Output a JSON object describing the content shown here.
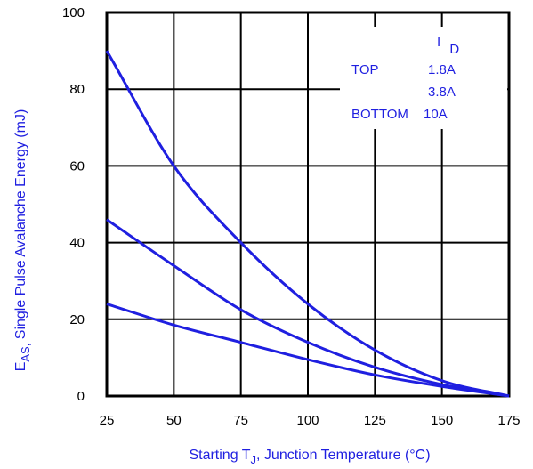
{
  "chart_data": {
    "type": "line",
    "x": [
      25,
      50,
      75,
      100,
      125,
      150,
      175
    ],
    "xlim": [
      25,
      175
    ],
    "ylim": [
      0,
      100
    ],
    "xticks": [
      "25",
      "50",
      "75",
      "100",
      "125",
      "150",
      "175"
    ],
    "yticks": [
      "0",
      "20",
      "40",
      "60",
      "80",
      "100"
    ],
    "grid": true,
    "ylabel": {
      "main": "E",
      "sub": "AS,",
      "rest": " Single Pulse Avalanche Energy (mJ)"
    },
    "xlabel": {
      "pre": "Starting T",
      "sub": "J",
      "post": ", Junction Temperature (°C)"
    },
    "legend": {
      "header_main": "I",
      "header_sub": "D",
      "position": "top-right",
      "rows": [
        {
          "tag": "TOP",
          "value": "1.8A"
        },
        {
          "tag": "",
          "value": "3.8A"
        },
        {
          "tag": "BOTTOM",
          "value": "10A"
        }
      ]
    },
    "series": [
      {
        "values": [
          90,
          60,
          40,
          24,
          12,
          4,
          0
        ]
      },
      {
        "values": [
          46,
          34,
          22.5,
          14,
          7.5,
          3,
          0
        ]
      },
      {
        "values": [
          24,
          18.5,
          14,
          9.5,
          5.5,
          2.5,
          0
        ]
      }
    ],
    "line_color": "#1f1fe0"
  }
}
